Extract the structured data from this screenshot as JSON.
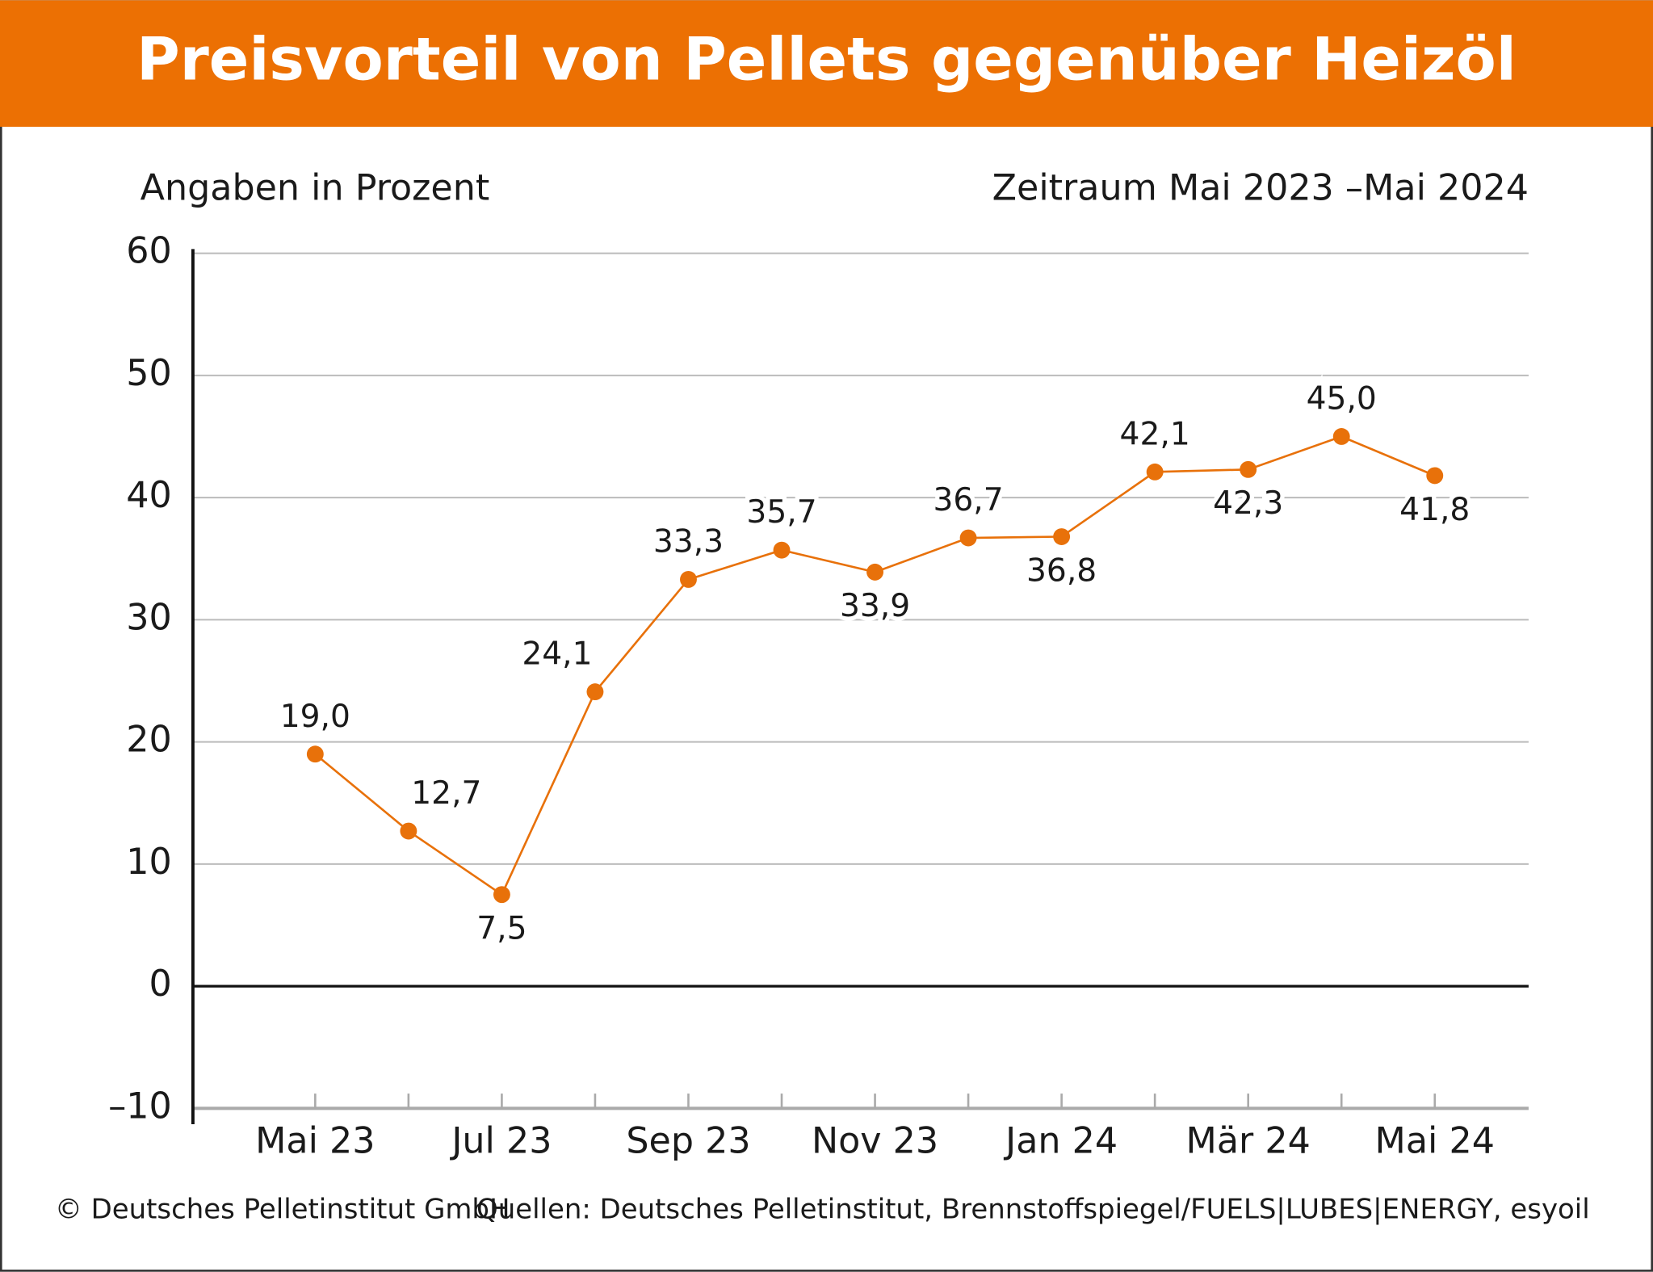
{
  "chart_data": {
    "type": "line",
    "title": "Preisvorteil von Pellets gegenüber Heizöl",
    "subtitle_left": "Angaben in Prozent",
    "subtitle_right": "Zeitraum Mai 2023 –Mai 2024",
    "categories": [
      "Mai 23",
      null,
      "Jul 23",
      null,
      "Sep 23",
      null,
      "Nov 23",
      null,
      "Jan 24",
      null,
      "Mär 24",
      null,
      "Mai 24"
    ],
    "series": [
      {
        "name": "Preisvorteil",
        "color": "#e8710a",
        "values": [
          19.0,
          12.7,
          7.5,
          24.1,
          33.3,
          35.7,
          33.9,
          36.7,
          36.8,
          42.1,
          42.3,
          45.0,
          41.8
        ],
        "value_labels": [
          "19,0",
          "12,7",
          "7,5",
          "24,1",
          "33,3",
          "35,7",
          "33,9",
          "36,7",
          "36,8",
          "42,1",
          "42,3",
          "45,0",
          "41,8"
        ]
      }
    ],
    "ylim": [
      -10,
      60
    ],
    "yticks": [
      {
        "value": -10,
        "label": "–10"
      },
      0,
      10,
      20,
      30,
      40,
      50,
      60
    ],
    "grid": true,
    "footer_left": "© Deutsches Pelletinstitut GmbH",
    "footer_right": "Quellen: Deutsches Pelletinstitut, Brennstoffspiegel/FUELS|LUBES|ENERGY, esyoil"
  }
}
